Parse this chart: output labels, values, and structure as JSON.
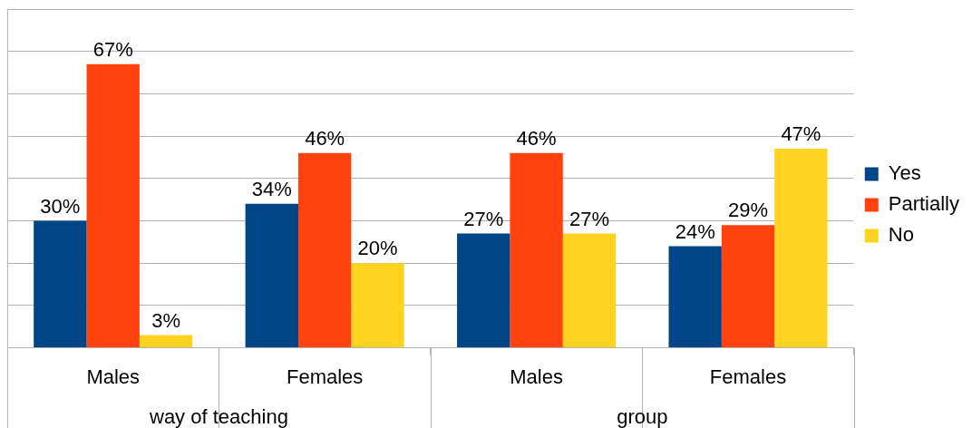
{
  "chart_data": {
    "type": "bar",
    "categories": [
      "Males",
      "Females",
      "Males",
      "Females"
    ],
    "series": [
      {
        "name": "Yes",
        "color": "#004586",
        "values": [
          30,
          34,
          27,
          24
        ],
        "value_labels": [
          "30%",
          "34%",
          "27%",
          "24%"
        ]
      },
      {
        "name": "Partially",
        "color": "#ff420e",
        "values": [
          67,
          46,
          46,
          29
        ],
        "value_labels": [
          "67%",
          "46%",
          "46%",
          "29%"
        ]
      },
      {
        "name": "No",
        "color": "#ffd320",
        "values": [
          3,
          20,
          27,
          47
        ],
        "value_labels": [
          "3%",
          "20%",
          "27%",
          "47%"
        ]
      }
    ],
    "ylim": [
      0,
      80
    ],
    "yticks": [
      {
        "value": 0,
        "label": null
      },
      {
        "value": 10,
        "label": null
      },
      {
        "value": 20,
        "label": null
      },
      {
        "value": 30,
        "label": null
      },
      {
        "value": 40,
        "label": null
      },
      {
        "value": 50,
        "label": null
      },
      {
        "value": 60,
        "label": null
      },
      {
        "value": 70,
        "label": null
      },
      {
        "value": 80,
        "label": null
      }
    ],
    "tick_labels": "x",
    "grid": "y",
    "legend": "right",
    "annotations": [
      "way of teaching",
      "group"
    ]
  }
}
